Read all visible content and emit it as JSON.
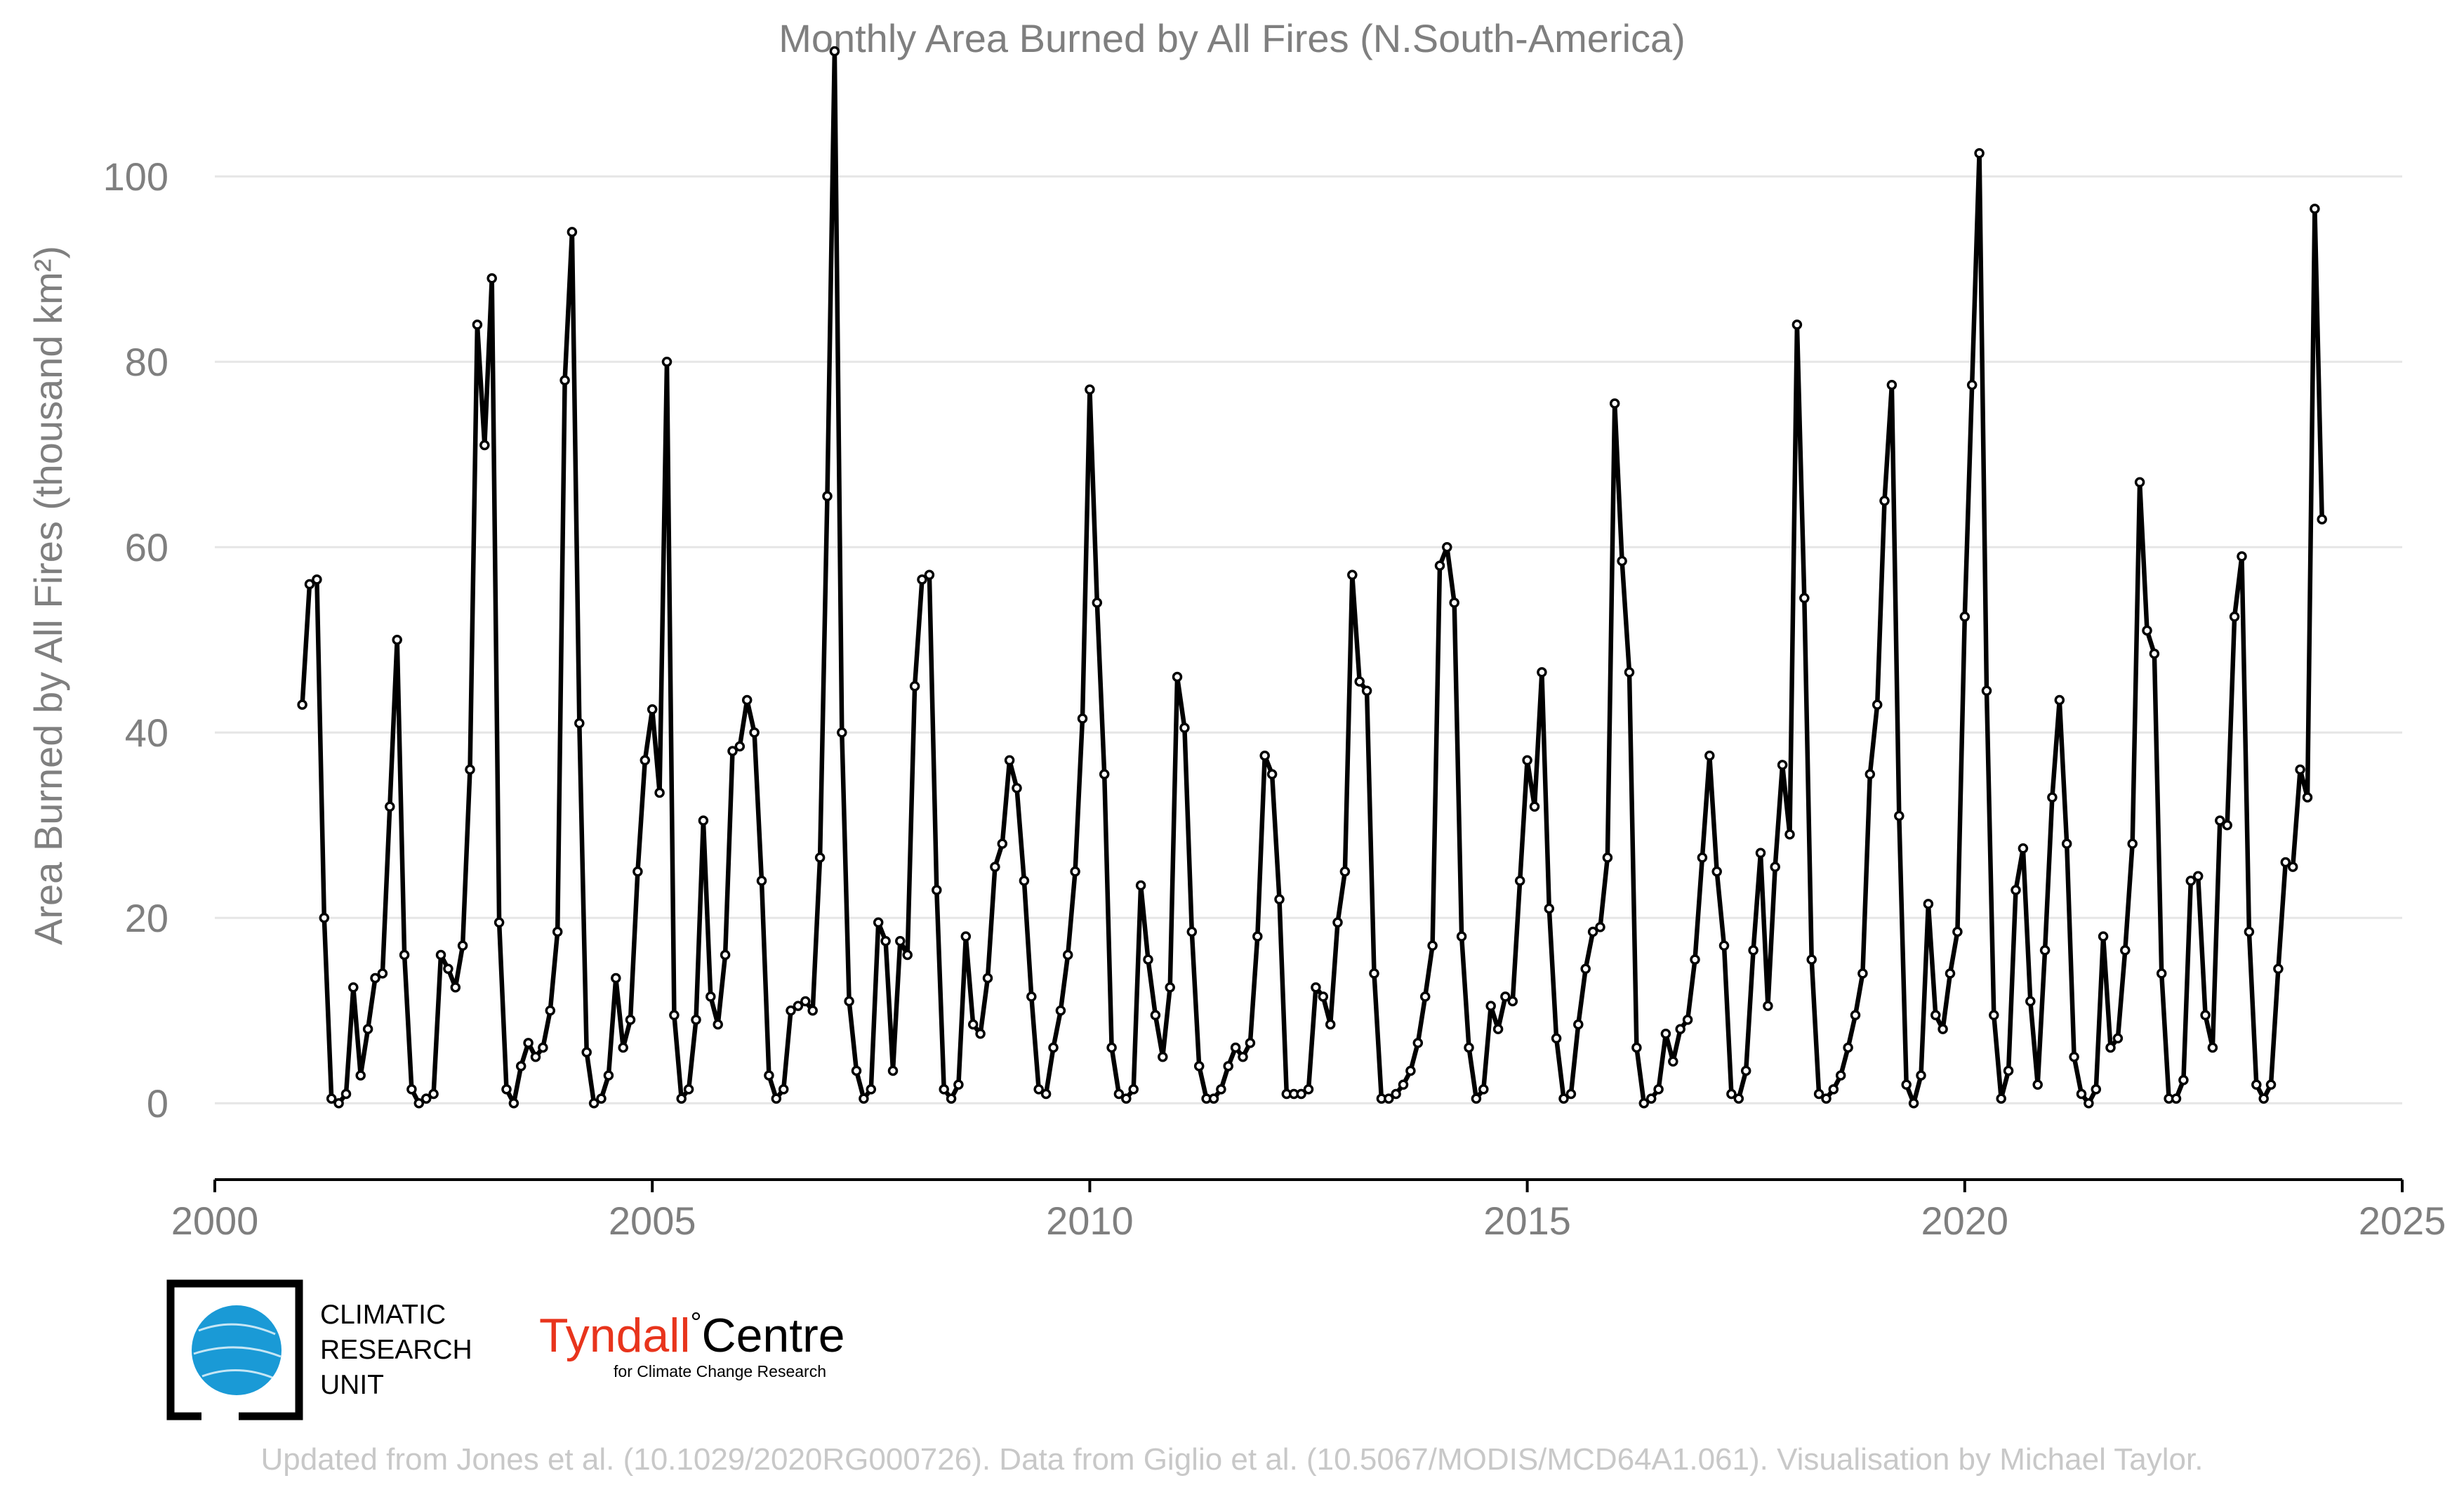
{
  "chart_data": {
    "type": "line",
    "title": "Monthly Area Burned by All Fires (N.South-America)",
    "ylabel": "Area Burned by All Fires (thousand km²)",
    "xlabel": "",
    "xlim": [
      2000,
      2025
    ],
    "ylim": [
      -9,
      116
    ],
    "x_ticks": [
      "2000",
      "2005",
      "2010",
      "2015",
      "2020",
      "2025"
    ],
    "y_ticks": [
      "0",
      "20",
      "40",
      "60",
      "80",
      "100"
    ],
    "grid": true,
    "legend": "none",
    "series": [
      {
        "color": "#000000",
        "marker": "open-circle",
        "start": "2001-01",
        "frequency": "monthly",
        "values": [
          43,
          56,
          56.5,
          20,
          0.5,
          0,
          1,
          12.5,
          3,
          8,
          13.5,
          14,
          32,
          50,
          16,
          1.5,
          0,
          0.5,
          1,
          16,
          14.5,
          12.5,
          17,
          36,
          84,
          71,
          89,
          19.5,
          1.5,
          0,
          4,
          6.5,
          5,
          6,
          10,
          18.5,
          78,
          94,
          41,
          5.5,
          0,
          0.5,
          3,
          13.5,
          6,
          9,
          25,
          37,
          42.5,
          33.5,
          80,
          9.5,
          0.5,
          1.5,
          9,
          30.5,
          11.5,
          8.5,
          16,
          38,
          38.5,
          43.5,
          40,
          24,
          3,
          0.5,
          1.5,
          10,
          10.5,
          11,
          10,
          26.5,
          65.5,
          113.5,
          40,
          11,
          3.5,
          0.5,
          1.5,
          19.5,
          17.5,
          3.5,
          17.5,
          16,
          45,
          56.5,
          57,
          23,
          1.5,
          0.5,
          2,
          18,
          8.5,
          7.5,
          13.5,
          25.5,
          28,
          37,
          34,
          24,
          11.5,
          1.5,
          1,
          6,
          10,
          16,
          25,
          41.5,
          77,
          54,
          35.5,
          6,
          1,
          0.5,
          1.5,
          23.5,
          15.5,
          9.5,
          5,
          12.5,
          46,
          40.5,
          18.5,
          4,
          0.5,
          0.5,
          1.5,
          4,
          6,
          5,
          6.5,
          18,
          37.5,
          35.5,
          22,
          1,
          1,
          1,
          1.5,
          12.5,
          11.5,
          8.5,
          19.5,
          25,
          57,
          45.5,
          44.5,
          14,
          0.5,
          0.5,
          1,
          2,
          3.5,
          6.5,
          11.5,
          17,
          58,
          60,
          54,
          18,
          6,
          0.5,
          1.5,
          10.5,
          8,
          11.5,
          11,
          24,
          37,
          32,
          46.5,
          21,
          7,
          0.5,
          1,
          8.5,
          14.5,
          18.5,
          19,
          26.5,
          75.5,
          58.5,
          46.5,
          6,
          0,
          0.5,
          1.5,
          7.5,
          4.5,
          8,
          9,
          15.5,
          26.5,
          37.5,
          25,
          17,
          1,
          0.5,
          3.5,
          16.5,
          27,
          10.5,
          25.5,
          36.5,
          29,
          84,
          54.5,
          15.5,
          1,
          0.5,
          1.5,
          3,
          6,
          9.5,
          14,
          35.5,
          43,
          65,
          77.5,
          31,
          2,
          0,
          3,
          21.5,
          9.5,
          8,
          14,
          18.5,
          52.5,
          77.5,
          102.5,
          44.5,
          9.5,
          0.5,
          3.5,
          23,
          27.5,
          11,
          2,
          16.5,
          33,
          43.5,
          28,
          5,
          1,
          0,
          1.5,
          18,
          6,
          7,
          16.5,
          28,
          67,
          51,
          48.5,
          14,
          0.5,
          0.5,
          2.5,
          24,
          24.5,
          9.5,
          6,
          30.5,
          30,
          52.5,
          59,
          18.5,
          2,
          0.5,
          2,
          14.5,
          26,
          25.5,
          36,
          33,
          96.5,
          63
        ]
      }
    ]
  },
  "logos": {
    "cru": {
      "line1": "CLIMATIC",
      "line2": "RESEARCH",
      "line3": "UNIT"
    },
    "tyndall": {
      "name_red": "Tyndall",
      "degree": "°",
      "name_black": "Centre",
      "subtitle": "for Climate Change Research"
    }
  },
  "credit": "Updated from Jones et al. (10.1029/2020RG000726). Data from Giglio et al. (10.5067/MODIS/MCD64A1.061). Visualisation by Michael Taylor.",
  "colors": {
    "line": "#000000",
    "marker_fill": "#ffffff",
    "text": "#7f7f7f",
    "grid": "#e6e6e6",
    "credit": "#c8c8c8",
    "tyndall_red": "#e8341c",
    "cru_globe": "#1a9ad6"
  }
}
